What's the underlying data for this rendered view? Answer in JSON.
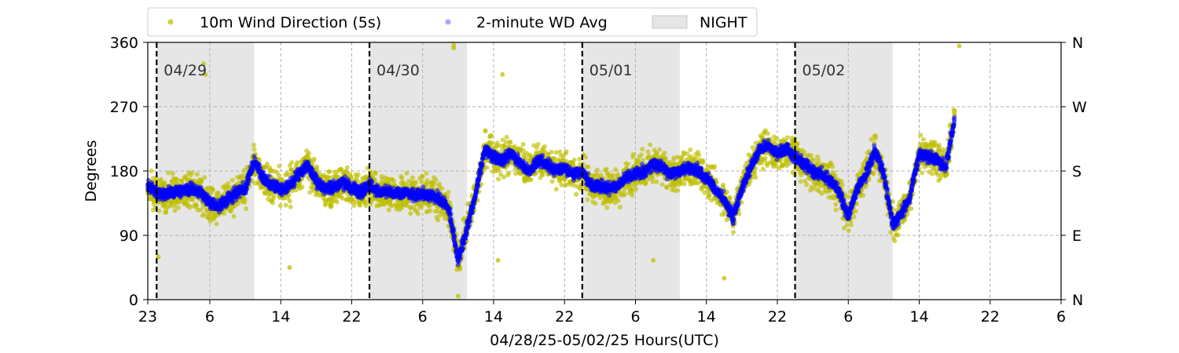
{
  "chart_data": {
    "type": "scatter",
    "xlabel": "04/28/25-05/02/25  Hours(UTC)",
    "ylabel": "Degrees",
    "x_ticks": [
      {
        "hours": 0,
        "label": "23"
      },
      {
        "hours": 7,
        "label": "6"
      },
      {
        "hours": 15,
        "label": "14"
      },
      {
        "hours": 23,
        "label": "22"
      },
      {
        "hours": 31,
        "label": "6"
      },
      {
        "hours": 39,
        "label": "14"
      },
      {
        "hours": 47,
        "label": "22"
      },
      {
        "hours": 55,
        "label": "6"
      },
      {
        "hours": 63,
        "label": "14"
      },
      {
        "hours": 71,
        "label": "22"
      },
      {
        "hours": 79,
        "label": "6"
      },
      {
        "hours": 87,
        "label": "14"
      },
      {
        "hours": 95,
        "label": "22"
      },
      {
        "hours": 103,
        "label": "6"
      }
    ],
    "xlim_hours": [
      0,
      103
    ],
    "ylim": [
      0,
      360
    ],
    "y_ticks": [
      0,
      90,
      180,
      270,
      360
    ],
    "y_ticks_right": [
      {
        "value": 0,
        "label": "N"
      },
      {
        "value": 90,
        "label": "E"
      },
      {
        "value": 180,
        "label": "S"
      },
      {
        "value": 270,
        "label": "W"
      },
      {
        "value": 360,
        "label": "N"
      }
    ],
    "grid": true,
    "day_markers": [
      {
        "hours": 1,
        "label": "04/29"
      },
      {
        "hours": 25,
        "label": "04/30"
      },
      {
        "hours": 49,
        "label": "05/01"
      },
      {
        "hours": 73,
        "label": "05/02"
      }
    ],
    "night_spans": [
      [
        1,
        12
      ],
      [
        25,
        36
      ],
      [
        49,
        60
      ],
      [
        73,
        84
      ]
    ],
    "legend_position": "top-left, above plot",
    "legend": [
      "10m Wind Direction (5s)",
      "2-minute WD Avg",
      "NIGHT"
    ],
    "colors": {
      "raw": "#bfbf00",
      "avg": "#0000ff",
      "night": "#e6e6e6",
      "marker": "#000000"
    },
    "series": [
      {
        "name": "2-minute WD Avg",
        "x": [
          0,
          1,
          2,
          3,
          4,
          5,
          6,
          7,
          8,
          9,
          10,
          11,
          12,
          13,
          14,
          15,
          16,
          17,
          18,
          19,
          20,
          21,
          22,
          23,
          24,
          25,
          26,
          27,
          28,
          29,
          30,
          31,
          32,
          33,
          34,
          35,
          36,
          37,
          38,
          39,
          40,
          41,
          42,
          43,
          44,
          45,
          46,
          47,
          48,
          49,
          50,
          51,
          52,
          53,
          54,
          55,
          56,
          57,
          58,
          59,
          60,
          61,
          62,
          63,
          64,
          65,
          66,
          67,
          68,
          69,
          70,
          71,
          72,
          73,
          74,
          75,
          76,
          77,
          78,
          79,
          80,
          81,
          82,
          83,
          84,
          85,
          86,
          87,
          88,
          89,
          90,
          91
        ],
        "values": [
          160,
          150,
          148,
          152,
          150,
          155,
          150,
          135,
          130,
          140,
          150,
          155,
          195,
          170,
          160,
          155,
          160,
          175,
          190,
          165,
          155,
          158,
          165,
          155,
          150,
          160,
          150,
          152,
          148,
          150,
          145,
          148,
          145,
          140,
          125,
          55,
          100,
          150,
          210,
          200,
          195,
          205,
          190,
          180,
          195,
          190,
          180,
          185,
          175,
          180,
          160,
          158,
          155,
          158,
          170,
          175,
          180,
          190,
          185,
          175,
          180,
          185,
          180,
          170,
          155,
          140,
          115,
          155,
          185,
          210,
          215,
          205,
          210,
          200,
          190,
          180,
          175,
          165,
          150,
          115,
          155,
          175,
          210,
          175,
          105,
          120,
          145,
          205,
          200,
          195,
          185,
          255
        ]
      },
      {
        "name": "10m Wind Direction (5s)",
        "x": [
          0,
          1,
          2,
          3,
          4,
          5,
          6,
          7,
          8,
          9,
          10,
          11,
          12,
          13,
          14,
          15,
          16,
          17,
          18,
          19,
          20,
          21,
          22,
          23,
          24,
          25,
          26,
          27,
          28,
          29,
          30,
          31,
          32,
          33,
          34,
          35,
          36,
          37,
          38,
          39,
          40,
          41,
          42,
          43,
          44,
          45,
          46,
          47,
          48,
          49,
          50,
          51,
          52,
          53,
          54,
          55,
          56,
          57,
          58,
          59,
          60,
          61,
          62,
          63,
          64,
          65,
          66,
          67,
          68,
          69,
          70,
          71,
          72,
          73,
          74,
          75,
          76,
          77,
          78,
          79,
          80,
          81,
          82,
          83,
          84,
          85,
          86,
          87,
          88,
          89,
          90,
          91
        ],
        "values": [
          160,
          150,
          148,
          152,
          150,
          155,
          150,
          135,
          130,
          140,
          150,
          155,
          195,
          170,
          160,
          155,
          160,
          175,
          190,
          165,
          155,
          158,
          165,
          155,
          150,
          160,
          150,
          152,
          148,
          150,
          145,
          148,
          145,
          140,
          125,
          55,
          100,
          150,
          210,
          200,
          195,
          205,
          190,
          180,
          195,
          190,
          180,
          185,
          175,
          180,
          160,
          158,
          155,
          158,
          170,
          175,
          180,
          190,
          185,
          175,
          180,
          185,
          180,
          170,
          155,
          140,
          115,
          155,
          185,
          210,
          215,
          205,
          210,
          200,
          190,
          180,
          175,
          165,
          150,
          115,
          155,
          175,
          210,
          175,
          105,
          120,
          145,
          205,
          200,
          195,
          185,
          255
        ],
        "spread": 35,
        "outliers": [
          {
            "x": 1.2,
            "y": 60
          },
          {
            "x": 6.3,
            "y": 330
          },
          {
            "x": 6.5,
            "y": 315
          },
          {
            "x": 16,
            "y": 45
          },
          {
            "x": 34.5,
            "y": 352
          },
          {
            "x": 34.5,
            "y": 356
          },
          {
            "x": 35,
            "y": 5
          },
          {
            "x": 39.5,
            "y": 55
          },
          {
            "x": 40,
            "y": 315
          },
          {
            "x": 57,
            "y": 55
          },
          {
            "x": 65,
            "y": 30
          },
          {
            "x": 91.5,
            "y": 355
          }
        ]
      }
    ]
  }
}
